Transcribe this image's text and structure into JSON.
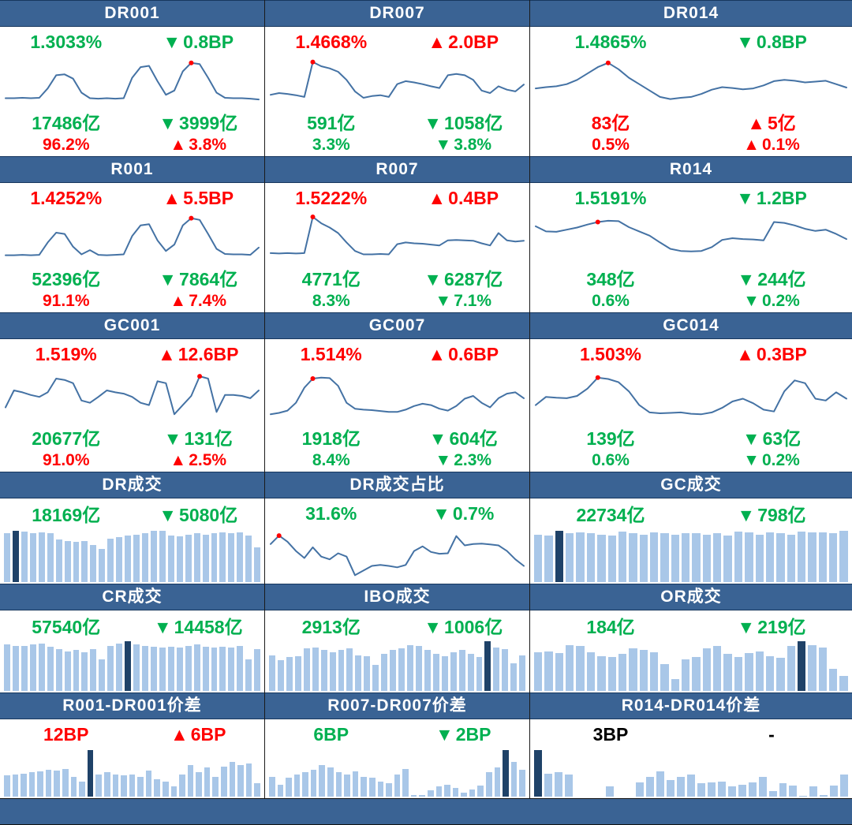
{
  "colors": {
    "header_bg": "#3A6394",
    "green": "#00B050",
    "red": "#FF0000",
    "black": "#000000",
    "line": "#4472A4",
    "bar_light": "#A9C7E8",
    "bar_dark": "#1F4268",
    "dot": "#FF0000",
    "separator": "#1a1a1a"
  },
  "footer": {
    "label": ""
  },
  "chart_data": [
    {
      "id": "dr001",
      "title": "DR001",
      "type": "line",
      "dot_index": 22,
      "rows": [
        {
          "left": {
            "text": "1.3033%",
            "color": "green"
          },
          "right": {
            "arrow": "▼",
            "text": "0.8BP",
            "color": "green"
          }
        },
        {
          "left": {
            "text": "17486亿",
            "color": "green"
          },
          "right": {
            "arrow": "▼",
            "text": "3999亿",
            "color": "green"
          }
        },
        {
          "left": {
            "text": "96.2%",
            "color": "red"
          },
          "right": {
            "arrow": "▲",
            "text": "3.8%",
            "color": "red"
          }
        }
      ],
      "values": [
        12,
        12,
        13,
        12,
        13,
        35,
        66,
        68,
        58,
        25,
        12,
        11,
        12,
        11,
        12,
        60,
        85,
        88,
        52,
        20,
        30,
        75,
        95,
        92,
        60,
        25,
        13,
        12,
        12,
        11,
        9
      ]
    },
    {
      "id": "dr007",
      "title": "DR007",
      "type": "line",
      "dot_index": 5,
      "rows": [
        {
          "left": {
            "text": "1.4668%",
            "color": "red"
          },
          "right": {
            "arrow": "▲",
            "text": "2.0BP",
            "color": "red"
          }
        },
        {
          "left": {
            "text": "591亿",
            "color": "green"
          },
          "right": {
            "arrow": "▼",
            "text": "1058亿",
            "color": "green"
          }
        },
        {
          "left": {
            "text": "3.3%",
            "color": "green"
          },
          "right": {
            "arrow": "▼",
            "text": "3.8%",
            "color": "green"
          }
        }
      ],
      "values": [
        20,
        24,
        22,
        19,
        15,
        97,
        87,
        82,
        74,
        55,
        28,
        13,
        17,
        19,
        15,
        45,
        52,
        49,
        45,
        40,
        36,
        66,
        69,
        66,
        55,
        30,
        24,
        40,
        32,
        28,
        44
      ]
    },
    {
      "id": "dr014",
      "title": "DR014",
      "type": "line",
      "dot_index": 7,
      "rows": [
        {
          "left": {
            "text": "1.4865%",
            "color": "green"
          },
          "right": {
            "arrow": "▼",
            "text": "0.8BP",
            "color": "green"
          }
        },
        {
          "left": {
            "text": "83亿",
            "color": "red"
          },
          "right": {
            "arrow": "▲",
            "text": "5亿",
            "color": "red"
          }
        },
        {
          "left": {
            "text": "0.5%",
            "color": "red"
          },
          "right": {
            "arrow": "▲",
            "text": "0.1%",
            "color": "red"
          }
        }
      ],
      "values": [
        35,
        38,
        40,
        45,
        55,
        70,
        85,
        95,
        80,
        60,
        45,
        30,
        15,
        10,
        13,
        15,
        22,
        32,
        38,
        36,
        33,
        35,
        42,
        52,
        55,
        53,
        49,
        51,
        53,
        45,
        37
      ]
    },
    {
      "id": "r001",
      "title": "R001",
      "type": "line",
      "dot_index": 22,
      "rows": [
        {
          "left": {
            "text": "1.4252%",
            "color": "red"
          },
          "right": {
            "arrow": "▲",
            "text": "5.5BP",
            "color": "red"
          }
        },
        {
          "left": {
            "text": "52396亿",
            "color": "green"
          },
          "right": {
            "arrow": "▼",
            "text": "7864亿",
            "color": "green"
          }
        },
        {
          "left": {
            "text": "91.1%",
            "color": "red"
          },
          "right": {
            "arrow": "▲",
            "text": "7.4%",
            "color": "red"
          }
        }
      ],
      "values": [
        10,
        10,
        11,
        10,
        11,
        40,
        63,
        60,
        30,
        12,
        22,
        11,
        10,
        11,
        12,
        55,
        80,
        83,
        45,
        20,
        35,
        80,
        97,
        93,
        60,
        25,
        13,
        12,
        12,
        11,
        28
      ]
    },
    {
      "id": "r007",
      "title": "R007",
      "type": "line",
      "dot_index": 5,
      "rows": [
        {
          "left": {
            "text": "1.5222%",
            "color": "red"
          },
          "right": {
            "arrow": "▲",
            "text": "0.4BP",
            "color": "red"
          }
        },
        {
          "left": {
            "text": "4771亿",
            "color": "green"
          },
          "right": {
            "arrow": "▼",
            "text": "6287亿",
            "color": "green"
          }
        },
        {
          "left": {
            "text": "8.3%",
            "color": "green"
          },
          "right": {
            "arrow": "▼",
            "text": "7.1%",
            "color": "green"
          }
        }
      ],
      "values": [
        15,
        14,
        15,
        14,
        15,
        100,
        85,
        75,
        62,
        40,
        20,
        12,
        12,
        13,
        12,
        36,
        40,
        38,
        37,
        35,
        33,
        45,
        46,
        45,
        44,
        38,
        33,
        62,
        45,
        42,
        44
      ]
    },
    {
      "id": "r014",
      "title": "R014",
      "type": "line",
      "dot_index": 6,
      "rows": [
        {
          "left": {
            "text": "1.5191%",
            "color": "green"
          },
          "right": {
            "arrow": "▼",
            "text": "1.2BP",
            "color": "green"
          }
        },
        {
          "left": {
            "text": "348亿",
            "color": "green"
          },
          "right": {
            "arrow": "▼",
            "text": "244亿",
            "color": "green"
          }
        },
        {
          "left": {
            "text": "0.6%",
            "color": "green"
          },
          "right": {
            "arrow": "▼",
            "text": "0.2%",
            "color": "green"
          }
        }
      ],
      "values": [
        78,
        66,
        65,
        70,
        75,
        82,
        88,
        91,
        90,
        76,
        66,
        56,
        40,
        25,
        20,
        19,
        20,
        29,
        46,
        50,
        48,
        47,
        45,
        88,
        86,
        80,
        72,
        67,
        70,
        60,
        48
      ]
    },
    {
      "id": "gc001",
      "title": "GC001",
      "type": "line",
      "dot_index": 23,
      "rows": [
        {
          "left": {
            "text": "1.519%",
            "color": "red"
          },
          "right": {
            "arrow": "▲",
            "text": "12.6BP",
            "color": "red"
          }
        },
        {
          "left": {
            "text": "20677亿",
            "color": "green"
          },
          "right": {
            "arrow": "▼",
            "text": "131亿",
            "color": "green"
          }
        },
        {
          "left": {
            "text": "91.0%",
            "color": "red"
          },
          "right": {
            "arrow": "▲",
            "text": "2.5%",
            "color": "red"
          }
        }
      ],
      "values": [
        25,
        62,
        58,
        52,
        48,
        58,
        88,
        85,
        78,
        40,
        35,
        48,
        62,
        58,
        55,
        48,
        35,
        30,
        82,
        78,
        10,
        30,
        50,
        93,
        88,
        15,
        52,
        52,
        50,
        45,
        62
      ]
    },
    {
      "id": "gc007",
      "title": "GC007",
      "type": "line",
      "dot_index": 5,
      "rows": [
        {
          "left": {
            "text": "1.514%",
            "color": "red"
          },
          "right": {
            "arrow": "▲",
            "text": "0.6BP",
            "color": "red"
          }
        },
        {
          "left": {
            "text": "1918亿",
            "color": "green"
          },
          "right": {
            "arrow": "▼",
            "text": "604亿",
            "color": "green"
          }
        },
        {
          "left": {
            "text": "8.4%",
            "color": "green"
          },
          "right": {
            "arrow": "▼",
            "text": "2.3%",
            "color": "green"
          }
        }
      ],
      "values": [
        10,
        13,
        18,
        35,
        68,
        88,
        90,
        89,
        72,
        35,
        22,
        20,
        19,
        17,
        15,
        15,
        20,
        28,
        33,
        30,
        22,
        18,
        28,
        44,
        50,
        35,
        25,
        45,
        55,
        58,
        45
      ]
    },
    {
      "id": "gc014",
      "title": "GC014",
      "type": "line",
      "dot_index": 6,
      "rows": [
        {
          "left": {
            "text": "1.503%",
            "color": "red"
          },
          "right": {
            "arrow": "▲",
            "text": "0.3BP",
            "color": "red"
          }
        },
        {
          "left": {
            "text": "139亿",
            "color": "green"
          },
          "right": {
            "arrow": "▼",
            "text": "63亿",
            "color": "green"
          }
        },
        {
          "left": {
            "text": "0.6%",
            "color": "green"
          },
          "right": {
            "arrow": "▼",
            "text": "0.2%",
            "color": "green"
          }
        }
      ],
      "values": [
        30,
        48,
        46,
        45,
        50,
        66,
        90,
        87,
        80,
        60,
        30,
        14,
        12,
        13,
        14,
        11,
        10,
        14,
        24,
        38,
        44,
        34,
        20,
        16,
        60,
        84,
        78,
        44,
        40,
        58,
        44
      ]
    },
    {
      "id": "dr-volume",
      "title": "DR成交",
      "type": "bar",
      "highlight_index": 1,
      "rows": [
        {
          "left": {
            "text": "18169亿",
            "color": "green"
          },
          "right": {
            "arrow": "▼",
            "text": "5080亿",
            "color": "green"
          }
        }
      ],
      "values": [
        93,
        97,
        95,
        93,
        94,
        93,
        80,
        78,
        76,
        78,
        70,
        62,
        82,
        85,
        88,
        90,
        93,
        97,
        97,
        88,
        86,
        90,
        92,
        90,
        92,
        94,
        92,
        94,
        88,
        66
      ]
    },
    {
      "id": "dr-share",
      "title": "DR成交占比",
      "type": "line",
      "dot_index": 1,
      "rows": [
        {
          "left": {
            "text": "31.6%",
            "color": "green"
          },
          "right": {
            "arrow": "▼",
            "text": "0.7%",
            "color": "green"
          }
        }
      ],
      "values": [
        75,
        93,
        80,
        60,
        45,
        68,
        48,
        42,
        55,
        48,
        8,
        18,
        28,
        30,
        28,
        25,
        30,
        60,
        70,
        58,
        54,
        55,
        92,
        72,
        75,
        76,
        74,
        72,
        60,
        42,
        28
      ]
    },
    {
      "id": "gc-volume",
      "title": "GC成交",
      "type": "bar",
      "highlight_index": 2,
      "rows": [
        {
          "left": {
            "text": "22734亿",
            "color": "green"
          },
          "right": {
            "arrow": "▼",
            "text": "798亿",
            "color": "green"
          }
        }
      ],
      "values": [
        90,
        88,
        97,
        92,
        94,
        92,
        90,
        88,
        96,
        92,
        90,
        94,
        92,
        90,
        92,
        92,
        90,
        92,
        88,
        96,
        94,
        90,
        94,
        92,
        90,
        96,
        94,
        94,
        92,
        97
      ]
    },
    {
      "id": "cr-volume",
      "title": "CR成交",
      "type": "bar",
      "highlight_index": 14,
      "rows": [
        {
          "left": {
            "text": "57540亿",
            "color": "green"
          },
          "right": {
            "arrow": "▼",
            "text": "14458亿",
            "color": "green"
          }
        }
      ],
      "values": [
        93,
        91,
        91,
        93,
        95,
        89,
        84,
        80,
        82,
        78,
        84,
        64,
        90,
        95,
        100,
        93,
        91,
        89,
        87,
        89,
        87,
        91,
        93,
        89,
        87,
        89,
        88,
        90,
        64,
        84
      ]
    },
    {
      "id": "ibo-volume",
      "title": "IBO成交",
      "type": "bar",
      "highlight_index": 25,
      "rows": [
        {
          "left": {
            "text": "2913亿",
            "color": "green"
          },
          "right": {
            "arrow": "▼",
            "text": "1006亿",
            "color": "green"
          }
        }
      ],
      "values": [
        72,
        62,
        68,
        70,
        85,
        88,
        82,
        78,
        82,
        85,
        72,
        70,
        52,
        75,
        82,
        85,
        92,
        90,
        82,
        75,
        70,
        78,
        82,
        75,
        68,
        100,
        88,
        84,
        55,
        72
      ]
    },
    {
      "id": "or-volume",
      "title": "OR成交",
      "type": "bar",
      "highlight_index": 25,
      "rows": [
        {
          "left": {
            "text": "184亿",
            "color": "green"
          },
          "right": {
            "arrow": "▼",
            "text": "219亿",
            "color": "green"
          }
        }
      ],
      "values": [
        78,
        80,
        76,
        92,
        90,
        78,
        70,
        68,
        74,
        86,
        82,
        78,
        54,
        24,
        64,
        68,
        86,
        90,
        74,
        68,
        76,
        80,
        70,
        66,
        90,
        100,
        92,
        88,
        45,
        30
      ]
    },
    {
      "id": "spread-r001-dr001",
      "title": "R001-DR001价差",
      "type": "bar",
      "highlight_index": 10,
      "rows": [
        {
          "left": {
            "text": "12BP",
            "color": "red"
          },
          "right": {
            "arrow": "▲",
            "text": "6BP",
            "color": "red"
          }
        }
      ],
      "values": [
        45,
        48,
        50,
        52,
        55,
        58,
        56,
        60,
        42,
        32,
        100,
        48,
        52,
        48,
        46,
        48,
        42,
        56,
        38,
        32,
        22,
        48,
        68,
        52,
        62,
        42,
        64,
        74,
        68,
        72,
        28
      ]
    },
    {
      "id": "spread-r007-dr007",
      "title": "R007-DR007价差",
      "type": "bar",
      "highlight_index": 28,
      "rows": [
        {
          "left": {
            "text": "6BP",
            "color": "green"
          },
          "right": {
            "arrow": "▼",
            "text": "2BP",
            "color": "green"
          }
        }
      ],
      "values": [
        42,
        26,
        40,
        48,
        52,
        58,
        68,
        62,
        52,
        48,
        55,
        42,
        40,
        32,
        28,
        48,
        60,
        4,
        3,
        14,
        22,
        26,
        18,
        8,
        16,
        24,
        52,
        62,
        100,
        75,
        58
      ]
    },
    {
      "id": "spread-r014-dr014",
      "title": "R014-DR014价差",
      "type": "bar",
      "highlight_index": 0,
      "rows": [
        {
          "left": {
            "text": "3BP",
            "color": "black"
          },
          "right": {
            "arrow": "",
            "text": "-",
            "color": "black"
          }
        }
      ],
      "values": [
        100,
        50,
        52,
        48,
        0,
        0,
        0,
        22,
        0,
        0,
        30,
        42,
        55,
        35,
        42,
        48,
        28,
        30,
        32,
        22,
        26,
        30,
        42,
        12,
        28,
        24,
        2,
        22,
        3,
        24,
        48
      ]
    }
  ]
}
